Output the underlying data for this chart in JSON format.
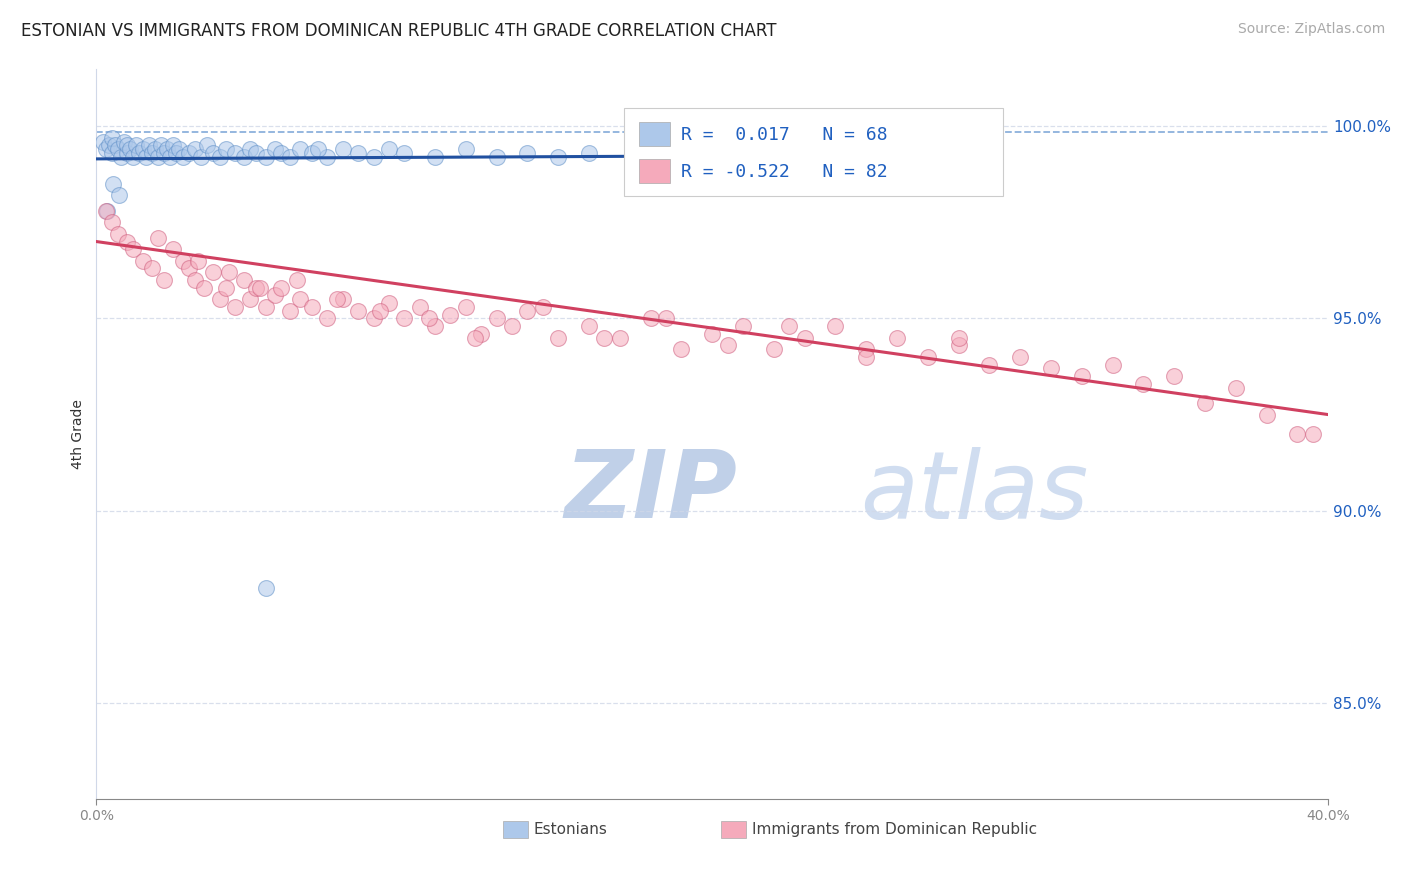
{
  "title": "ESTONIAN VS IMMIGRANTS FROM DOMINICAN REPUBLIC 4TH GRADE CORRELATION CHART",
  "source": "Source: ZipAtlas.com",
  "ylabel": "4th Grade",
  "legend_entries": [
    {
      "label": "Estonians",
      "color": "#adc8ea",
      "R": 0.017,
      "N": 68
    },
    {
      "label": "Immigrants from Dominican Republic",
      "color": "#f5aabb",
      "R": -0.522,
      "N": 82
    }
  ],
  "blue_scatter_x": [
    0.2,
    0.3,
    0.4,
    0.5,
    0.5,
    0.6,
    0.7,
    0.8,
    0.9,
    1.0,
    1.0,
    1.1,
    1.2,
    1.3,
    1.4,
    1.5,
    1.6,
    1.7,
    1.8,
    1.9,
    2.0,
    2.1,
    2.2,
    2.3,
    2.4,
    2.5,
    2.6,
    2.7,
    2.8,
    3.0,
    3.2,
    3.4,
    3.6,
    3.8,
    4.0,
    4.2,
    4.5,
    4.8,
    5.0,
    5.2,
    5.5,
    5.8,
    6.0,
    6.3,
    6.6,
    7.0,
    7.5,
    8.0,
    8.5,
    9.0,
    9.5,
    10.0,
    11.0,
    12.0,
    13.0,
    14.0,
    15.0,
    16.0,
    17.5,
    19.0,
    21.0,
    24.0,
    26.0,
    7.2,
    0.35,
    0.55,
    0.75,
    5.5
  ],
  "blue_scatter_y": [
    99.6,
    99.4,
    99.5,
    99.3,
    99.7,
    99.5,
    99.4,
    99.2,
    99.6,
    99.3,
    99.5,
    99.4,
    99.2,
    99.5,
    99.3,
    99.4,
    99.2,
    99.5,
    99.3,
    99.4,
    99.2,
    99.5,
    99.3,
    99.4,
    99.2,
    99.5,
    99.3,
    99.4,
    99.2,
    99.3,
    99.4,
    99.2,
    99.5,
    99.3,
    99.2,
    99.4,
    99.3,
    99.2,
    99.4,
    99.3,
    99.2,
    99.4,
    99.3,
    99.2,
    99.4,
    99.3,
    99.2,
    99.4,
    99.3,
    99.2,
    99.4,
    99.3,
    99.2,
    99.4,
    99.2,
    99.3,
    99.2,
    99.3,
    99.2,
    99.3,
    99.2,
    99.3,
    99.2,
    99.4,
    97.8,
    98.5,
    98.2,
    88.0
  ],
  "pink_scatter_x": [
    0.3,
    0.5,
    0.7,
    1.0,
    1.2,
    1.5,
    1.8,
    2.0,
    2.2,
    2.5,
    2.8,
    3.0,
    3.2,
    3.5,
    3.8,
    4.0,
    4.2,
    4.5,
    4.8,
    5.0,
    5.2,
    5.5,
    5.8,
    6.0,
    6.3,
    6.6,
    7.0,
    7.5,
    8.0,
    8.5,
    9.0,
    9.5,
    10.0,
    10.5,
    11.0,
    11.5,
    12.0,
    12.5,
    13.0,
    13.5,
    14.0,
    15.0,
    16.0,
    17.0,
    18.0,
    19.0,
    20.0,
    21.0,
    22.0,
    23.0,
    24.0,
    25.0,
    26.0,
    27.0,
    28.0,
    29.0,
    30.0,
    31.0,
    32.0,
    33.0,
    34.0,
    35.0,
    36.0,
    37.0,
    38.0,
    39.0,
    3.3,
    4.3,
    5.3,
    6.5,
    7.8,
    9.2,
    10.8,
    12.3,
    14.5,
    16.5,
    18.5,
    20.5,
    22.5,
    25.0,
    28.0,
    39.5
  ],
  "pink_scatter_y": [
    97.8,
    97.5,
    97.2,
    97.0,
    96.8,
    96.5,
    96.3,
    97.1,
    96.0,
    96.8,
    96.5,
    96.3,
    96.0,
    95.8,
    96.2,
    95.5,
    95.8,
    95.3,
    96.0,
    95.5,
    95.8,
    95.3,
    95.6,
    95.8,
    95.2,
    95.5,
    95.3,
    95.0,
    95.5,
    95.2,
    95.0,
    95.4,
    95.0,
    95.3,
    94.8,
    95.1,
    95.3,
    94.6,
    95.0,
    94.8,
    95.2,
    94.5,
    94.8,
    94.5,
    95.0,
    94.2,
    94.6,
    94.8,
    94.2,
    94.5,
    94.8,
    94.2,
    94.5,
    94.0,
    94.3,
    93.8,
    94.0,
    93.7,
    93.5,
    93.8,
    93.3,
    93.5,
    92.8,
    93.2,
    92.5,
    92.0,
    96.5,
    96.2,
    95.8,
    96.0,
    95.5,
    95.2,
    95.0,
    94.5,
    95.3,
    94.5,
    95.0,
    94.3,
    94.8,
    94.0,
    94.5,
    92.0
  ],
  "blue_line_x": [
    0.0,
    26.0
  ],
  "blue_line_y": [
    99.15,
    99.25
  ],
  "pink_line_x": [
    0.0,
    40.0
  ],
  "pink_line_y": [
    97.0,
    92.5
  ],
  "dashed_top_y": 99.85,
  "xlim": [
    0.0,
    40.0
  ],
  "ylim": [
    82.5,
    101.5
  ],
  "yticks": [
    85.0,
    90.0,
    95.0,
    100.0
  ],
  "ytick_labels": [
    "85.0%",
    "90.0%",
    "95.0%",
    "100.0%"
  ],
  "xtick_positions": [
    0.0,
    40.0
  ],
  "xtick_labels": [
    "0.0%",
    "40.0%"
  ],
  "grid_color": "#d0d8e8",
  "blue_dot_face": "#adc8ea",
  "blue_dot_edge": "#6090c8",
  "pink_dot_face": "#f5aabb",
  "pink_dot_edge": "#d06080",
  "blue_line_color": "#2050a0",
  "pink_line_color": "#d04060",
  "dashed_color": "#80a8d8",
  "title_color": "#222222",
  "source_color": "#aaaaaa",
  "ylabel_color": "#333333",
  "axis_color": "#888888",
  "legend_text_color": "#2060c0",
  "watermark_zip_color": "#c0d0e8",
  "watermark_atlas_color": "#d0ddf0",
  "scatter_size": 130,
  "scatter_alpha": 0.55,
  "line_width": 2.2,
  "title_fontsize": 12,
  "source_fontsize": 10,
  "ylabel_fontsize": 10,
  "ytick_fontsize": 11,
  "xtick_fontsize": 10,
  "legend_fontsize": 13
}
